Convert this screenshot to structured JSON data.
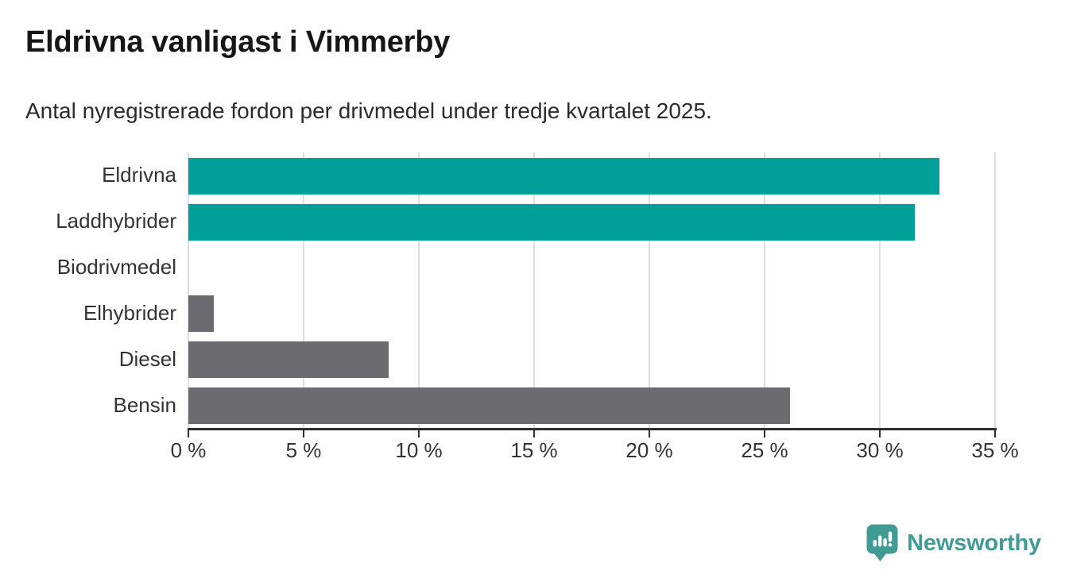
{
  "chart_data": {
    "type": "bar",
    "orientation": "horizontal",
    "title": "Eldrivna vanligast i Vimmerby",
    "subtitle": "Antal nyregistrerade fordon per drivmedel under tredje kvartalet 2025.",
    "categories": [
      "Eldrivna",
      "Laddhybrider",
      "Biodrivmedel",
      "Elhybrider",
      "Diesel",
      "Bensin"
    ],
    "values": [
      32.6,
      31.5,
      0,
      1.1,
      8.7,
      26.1
    ],
    "unit": "%",
    "xlim": [
      0,
      35
    ],
    "xticks": [
      0,
      5,
      10,
      15,
      20,
      25,
      30,
      35
    ],
    "xtick_suffix": " %",
    "bar_colors": [
      "#009f98",
      "#009f98",
      "#6b6b70",
      "#6b6b70",
      "#6b6b70",
      "#6b6b70"
    ],
    "grid": true,
    "legend": "none",
    "colors": {
      "highlight": "#009f98",
      "default": "#6b6b70",
      "gridline": "#dedede",
      "axis": "#2e2e2e",
      "text": "#333333"
    }
  },
  "branding": {
    "name": "Newsworthy",
    "icon": "newsworthy-marker-icon",
    "color": "#429a94"
  }
}
